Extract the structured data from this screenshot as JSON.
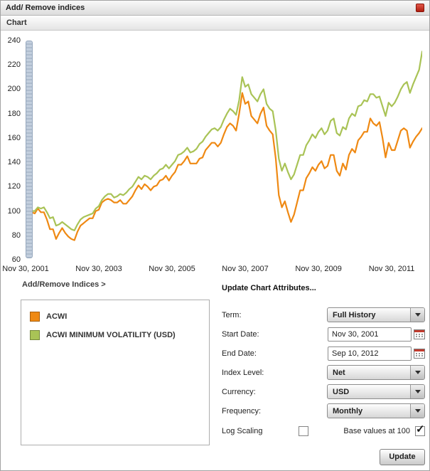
{
  "header": {
    "title": "Add/ Remove indices",
    "tab": "Chart"
  },
  "links": {
    "add_remove_indices": "Add/Remove Indices >",
    "update_chart_attributes": "Update Chart Attributes..."
  },
  "form": {
    "term": {
      "label": "Term:",
      "value": "Full History"
    },
    "start_date": {
      "label": "Start Date:",
      "value": "Nov 30, 2001"
    },
    "end_date": {
      "label": "End Date:",
      "value": "Sep 10, 2012"
    },
    "index_level": {
      "label": "Index Level:",
      "value": "Net"
    },
    "currency": {
      "label": "Currency:",
      "value": "USD"
    },
    "frequency": {
      "label": "Frequency:",
      "value": "Monthly"
    },
    "log_scaling": {
      "label": "Log Scaling",
      "checked": false,
      "mark": ""
    },
    "base_values": {
      "label": "Base values at 100",
      "checked": true,
      "mark": "✓"
    },
    "update_button": "Update"
  },
  "chart_data": {
    "type": "line",
    "title": "",
    "grid": false,
    "base_value": 100,
    "frequency": "Monthly",
    "ylim": [
      60,
      240
    ],
    "yticks": [
      60,
      80,
      100,
      120,
      140,
      160,
      180,
      200,
      220,
      240
    ],
    "x_total_months": 130,
    "n_points": 131,
    "x_start_label": "Nov 30, 2001",
    "x_end_label": "Sep 10, 2012",
    "xticks": [
      {
        "month": 0,
        "label": "Nov 30, 2001"
      },
      {
        "month": 24,
        "label": "Nov 30, 2003"
      },
      {
        "month": 48,
        "label": "Nov 30, 2005"
      },
      {
        "month": 72,
        "label": "Nov 30, 2007"
      },
      {
        "month": 96,
        "label": "Nov 30, 2009"
      },
      {
        "month": 120,
        "label": "Nov 30, 2011"
      }
    ],
    "series": [
      {
        "name": "ACWI",
        "color": "#ef8913",
        "values": [
          100,
          101.5,
          99,
          98,
          102,
          99,
          99,
          93,
          85,
          85,
          77,
          82,
          86,
          82,
          79,
          77,
          76,
          83,
          88,
          90,
          92,
          94,
          94,
          100,
          101,
          107,
          109,
          110,
          109,
          107,
          107,
          109,
          106,
          106,
          109,
          112,
          117,
          121,
          118,
          122,
          120,
          117,
          120,
          121,
          125,
          126,
          129,
          125,
          129,
          132,
          138,
          138,
          141,
          145,
          139,
          139,
          139,
          143,
          144,
          150,
          153,
          156,
          156,
          153,
          156,
          163,
          169,
          172,
          170,
          166,
          180,
          197,
          188,
          190,
          178,
          175,
          172,
          180,
          185,
          170,
          166,
          163,
          143,
          113,
          103,
          108,
          99,
          91,
          97,
          107,
          117,
          117,
          127,
          131,
          136,
          133,
          138,
          141,
          135,
          137,
          146,
          146,
          133,
          129,
          139,
          134,
          146,
          151,
          148,
          158,
          161,
          165,
          165,
          176,
          172,
          170,
          173,
          160,
          144,
          156,
          150,
          150,
          158,
          166,
          168,
          166,
          152,
          157,
          161,
          164,
          168
        ]
      },
      {
        "name": "ACWI MINIMUM VOLATILITY (USD)",
        "color": "#a9c356",
        "values": [
          100,
          101,
          100,
          100,
          103,
          102,
          103,
          99,
          94,
          95,
          88,
          89,
          91,
          89,
          87,
          85,
          84,
          89,
          93,
          95,
          96,
          97,
          98,
          102,
          104,
          109,
          112,
          114,
          114,
          111,
          112,
          114,
          113,
          115,
          118,
          120,
          124,
          128,
          126,
          129,
          128,
          126,
          129,
          131,
          134,
          135,
          138,
          135,
          138,
          141,
          146,
          147,
          149,
          152,
          148,
          149,
          151,
          155,
          157,
          161,
          164,
          167,
          168,
          166,
          169,
          175,
          180,
          184,
          182,
          179,
          191,
          210,
          202,
          204,
          196,
          193,
          190,
          196,
          200,
          188,
          184,
          182,
          166,
          143,
          133,
          139,
          132,
          126,
          130,
          138,
          146,
          146,
          154,
          158,
          163,
          160,
          165,
          168,
          163,
          166,
          174,
          176,
          164,
          162,
          169,
          167,
          176,
          180,
          178,
          186,
          187,
          191,
          190,
          196,
          196,
          193,
          194,
          186,
          178,
          189,
          186,
          189,
          194,
          200,
          204,
          206,
          197,
          204,
          210,
          216,
          231
        ]
      }
    ]
  }
}
